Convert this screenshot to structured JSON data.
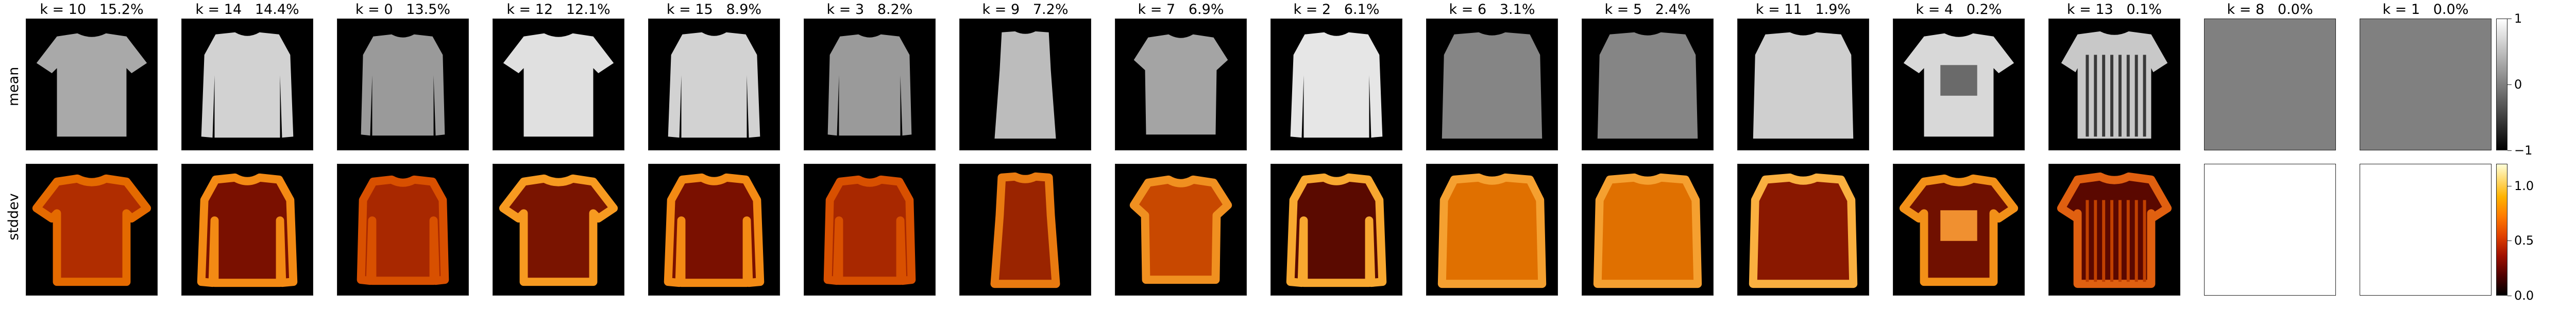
{
  "row_labels": {
    "mean": "mean",
    "stddev": "stddev"
  },
  "columns": [
    {
      "k": "10",
      "pct": "15.2%",
      "shape": "tshirt"
    },
    {
      "k": "14",
      "pct": "14.4%",
      "shape": "sweater"
    },
    {
      "k": "0",
      "pct": "13.5%",
      "shape": "pullover"
    },
    {
      "k": "12",
      "pct": "12.1%",
      "shape": "tshirt_bright"
    },
    {
      "k": "15",
      "pct": "8.9%",
      "shape": "sweater"
    },
    {
      "k": "3",
      "pct": "8.2%",
      "shape": "pullover"
    },
    {
      "k": "9",
      "pct": "7.2%",
      "shape": "dress"
    },
    {
      "k": "7",
      "pct": "6.9%",
      "shape": "blouse"
    },
    {
      "k": "2",
      "pct": "6.1%",
      "shape": "sweater_bright"
    },
    {
      "k": "6",
      "pct": "3.1%",
      "shape": "coat_blur"
    },
    {
      "k": "5",
      "pct": "2.4%",
      "shape": "coat_blur"
    },
    {
      "k": "11",
      "pct": "1.9%",
      "shape": "coat_bright"
    },
    {
      "k": "4",
      "pct": "0.2%",
      "shape": "printed_tee"
    },
    {
      "k": "13",
      "pct": "0.1%",
      "shape": "striped"
    },
    {
      "k": "8",
      "pct": "0.0%",
      "shape": "empty"
    },
    {
      "k": "1",
      "pct": "0.0%",
      "shape": "empty"
    }
  ],
  "colorbars": {
    "mean": {
      "ticks": [
        "1",
        "0",
        "−1"
      ],
      "values": [
        1,
        0,
        -1
      ],
      "range": [
        -1,
        1
      ],
      "colormap": "gray"
    },
    "stddev": {
      "ticks": [
        "1.0",
        "0.5",
        "0.0"
      ],
      "values": [
        1.0,
        0.5,
        0.0
      ],
      "range": [
        0,
        1.2
      ],
      "colormap": "afmhot"
    }
  },
  "colors": {
    "empty_mean": "#808080",
    "empty_std": "#ffffff"
  }
}
